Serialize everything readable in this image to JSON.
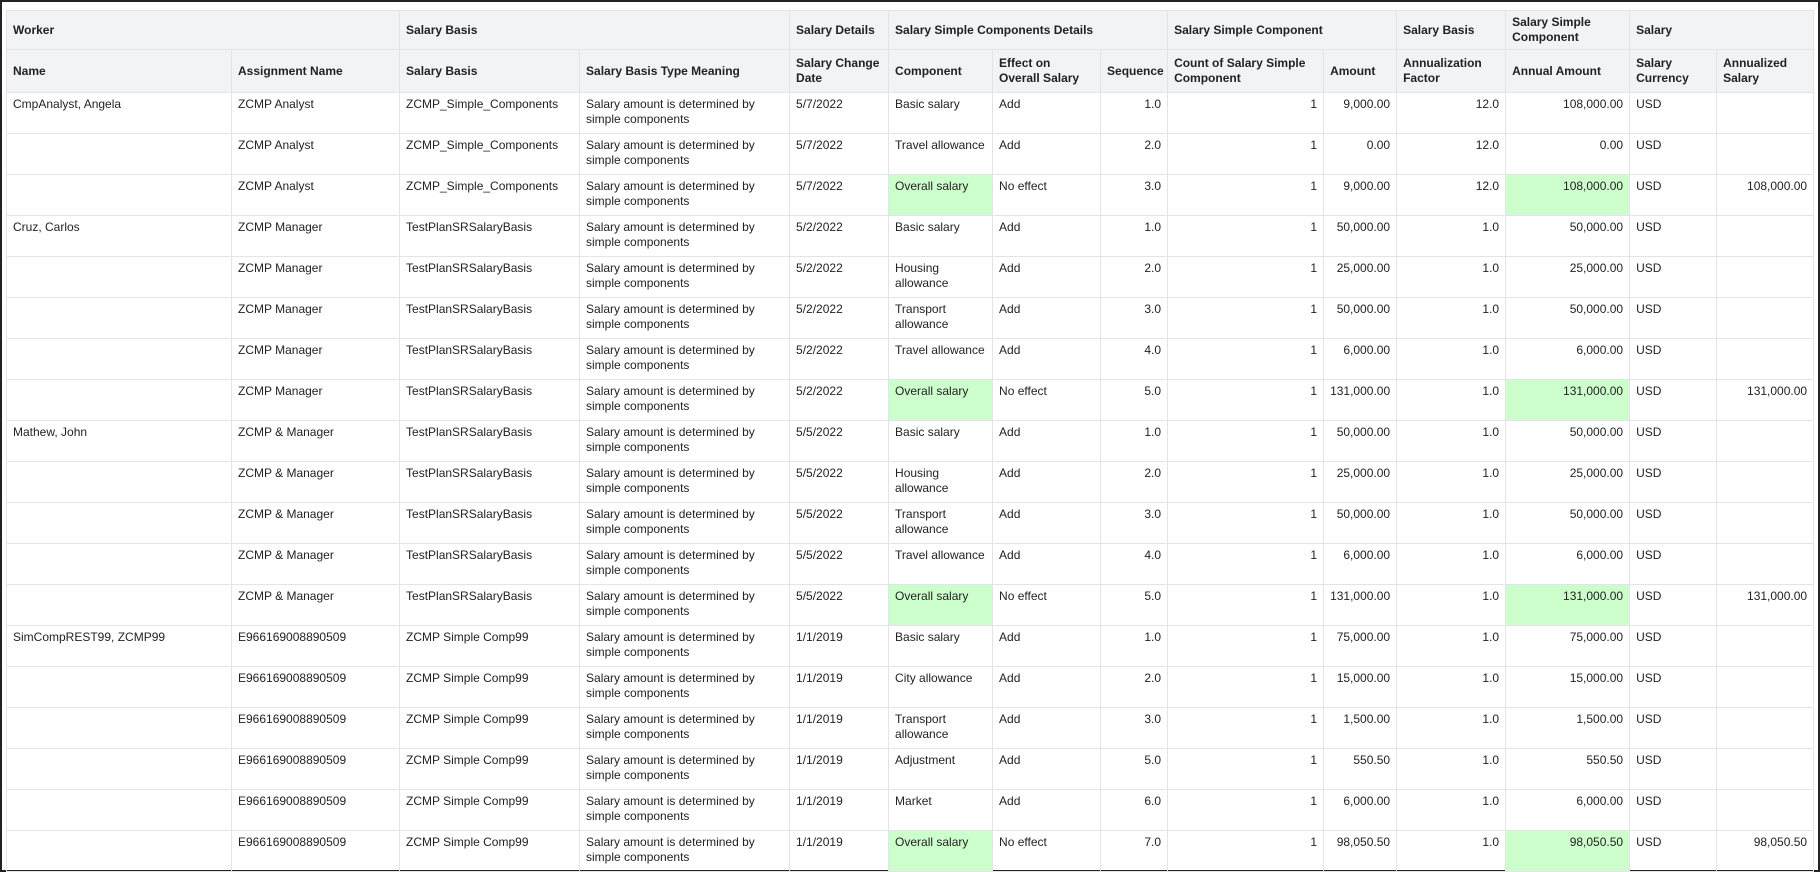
{
  "table": {
    "groups": [
      {
        "label": "Worker",
        "span": 2
      },
      {
        "label": "Salary Basis",
        "span": 2
      },
      {
        "label": "Salary Details",
        "span": 1
      },
      {
        "label": "Salary Simple Components Details",
        "span": 3
      },
      {
        "label": "Salary Simple Component",
        "span": 2
      },
      {
        "label": "Salary Basis",
        "span": 1
      },
      {
        "label": "Salary Simple Component",
        "span": 1
      },
      {
        "label": "Salary",
        "span": 2
      }
    ],
    "columns": [
      "Name",
      "Assignment Name",
      "Salary Basis",
      "Salary Basis Type Meaning",
      "Salary Change Date",
      "Component",
      "Effect on Overall Salary",
      "Sequence",
      "Count of Salary Simple Component",
      "Amount",
      "Annualization Factor",
      "Annual Amount",
      "Salary Currency",
      "Annualized Salary"
    ],
    "highlight_color": "#ccffcc",
    "highlighted_columns": [
      5,
      11
    ],
    "rows": [
      {
        "cells": [
          "CmpAnalyst, Angela",
          "ZCMP Analyst",
          "ZCMP_Simple_Components",
          "Salary amount is determined by simple components",
          "5/7/2022",
          "Basic salary",
          "Add",
          "1.0",
          "1",
          "9,000.00",
          "12.0",
          "108,000.00",
          "USD",
          null
        ]
      },
      {
        "cells": [
          null,
          "ZCMP Analyst",
          "ZCMP_Simple_Components",
          "Salary amount is determined by simple components",
          "5/7/2022",
          "Travel allowance",
          "Add",
          "2.0",
          "1",
          "0.00",
          "12.0",
          "0.00",
          "USD",
          null
        ]
      },
      {
        "cells": [
          null,
          "ZCMP Analyst",
          "ZCMP_Simple_Components",
          "Salary amount is determined by simple components",
          "5/7/2022",
          "Overall salary",
          "No effect",
          "3.0",
          "1",
          "9,000.00",
          "12.0",
          "108,000.00",
          "USD",
          "108,000.00"
        ],
        "highlight": true
      },
      {
        "cells": [
          "Cruz, Carlos",
          "ZCMP Manager",
          "TestPlanSRSalaryBasis",
          "Salary amount is determined by simple components",
          "5/2/2022",
          "Basic salary",
          "Add",
          "1.0",
          "1",
          "50,000.00",
          "1.0",
          "50,000.00",
          "USD",
          null
        ]
      },
      {
        "cells": [
          null,
          "ZCMP Manager",
          "TestPlanSRSalaryBasis",
          "Salary amount is determined by simple components",
          "5/2/2022",
          "Housing allowance",
          "Add",
          "2.0",
          "1",
          "25,000.00",
          "1.0",
          "25,000.00",
          "USD",
          null
        ]
      },
      {
        "cells": [
          null,
          "ZCMP Manager",
          "TestPlanSRSalaryBasis",
          "Salary amount is determined by simple components",
          "5/2/2022",
          "Transport allowance",
          "Add",
          "3.0",
          "1",
          "50,000.00",
          "1.0",
          "50,000.00",
          "USD",
          null
        ]
      },
      {
        "cells": [
          null,
          "ZCMP Manager",
          "TestPlanSRSalaryBasis",
          "Salary amount is determined by simple components",
          "5/2/2022",
          "Travel allowance",
          "Add",
          "4.0",
          "1",
          "6,000.00",
          "1.0",
          "6,000.00",
          "USD",
          null
        ]
      },
      {
        "cells": [
          null,
          "ZCMP Manager",
          "TestPlanSRSalaryBasis",
          "Salary amount is determined by simple components",
          "5/2/2022",
          "Overall salary",
          "No effect",
          "5.0",
          "1",
          "131,000.00",
          "1.0",
          "131,000.00",
          "USD",
          "131,000.00"
        ],
        "highlight": true
      },
      {
        "cells": [
          "Mathew, John",
          "ZCMP & Manager",
          "TestPlanSRSalaryBasis",
          "Salary amount is determined by simple components",
          "5/5/2022",
          "Basic salary",
          "Add",
          "1.0",
          "1",
          "50,000.00",
          "1.0",
          "50,000.00",
          "USD",
          null
        ]
      },
      {
        "cells": [
          null,
          "ZCMP & Manager",
          "TestPlanSRSalaryBasis",
          "Salary amount is determined by simple components",
          "5/5/2022",
          "Housing allowance",
          "Add",
          "2.0",
          "1",
          "25,000.00",
          "1.0",
          "25,000.00",
          "USD",
          null
        ]
      },
      {
        "cells": [
          null,
          "ZCMP & Manager",
          "TestPlanSRSalaryBasis",
          "Salary amount is determined by simple components",
          "5/5/2022",
          "Transport allowance",
          "Add",
          "3.0",
          "1",
          "50,000.00",
          "1.0",
          "50,000.00",
          "USD",
          null
        ]
      },
      {
        "cells": [
          null,
          "ZCMP & Manager",
          "TestPlanSRSalaryBasis",
          "Salary amount is determined by simple components",
          "5/5/2022",
          "Travel allowance",
          "Add",
          "4.0",
          "1",
          "6,000.00",
          "1.0",
          "6,000.00",
          "USD",
          null
        ]
      },
      {
        "cells": [
          null,
          "ZCMP & Manager",
          "TestPlanSRSalaryBasis",
          "Salary amount is determined by simple components",
          "5/5/2022",
          "Overall salary",
          "No effect",
          "5.0",
          "1",
          "131,000.00",
          "1.0",
          "131,000.00",
          "USD",
          "131,000.00"
        ],
        "highlight": true
      },
      {
        "cells": [
          "SimCompREST99, ZCMP99",
          "E966169008890509",
          "ZCMP Simple Comp99",
          "Salary amount is determined by simple components",
          "1/1/2019",
          "Basic salary",
          "Add",
          "1.0",
          "1",
          "75,000.00",
          "1.0",
          "75,000.00",
          "USD",
          null
        ]
      },
      {
        "cells": [
          null,
          "E966169008890509",
          "ZCMP Simple Comp99",
          "Salary amount is determined by simple components",
          "1/1/2019",
          "City allowance",
          "Add",
          "2.0",
          "1",
          "15,000.00",
          "1.0",
          "15,000.00",
          "USD",
          null
        ]
      },
      {
        "cells": [
          null,
          "E966169008890509",
          "ZCMP Simple Comp99",
          "Salary amount is determined by simple components",
          "1/1/2019",
          "Transport allowance",
          "Add",
          "3.0",
          "1",
          "1,500.00",
          "1.0",
          "1,500.00",
          "USD",
          null
        ]
      },
      {
        "cells": [
          null,
          "E966169008890509",
          "ZCMP Simple Comp99",
          "Salary amount is determined by simple components",
          "1/1/2019",
          "Adjustment",
          "Add",
          "5.0",
          "1",
          "550.50",
          "1.0",
          "550.50",
          "USD",
          null
        ]
      },
      {
        "cells": [
          null,
          "E966169008890509",
          "ZCMP Simple Comp99",
          "Salary amount is determined by simple components",
          "1/1/2019",
          "Market",
          "Add",
          "6.0",
          "1",
          "6,000.00",
          "1.0",
          "6,000.00",
          "USD",
          null
        ]
      },
      {
        "cells": [
          null,
          "E966169008890509",
          "ZCMP Simple Comp99",
          "Salary amount is determined by simple components",
          "1/1/2019",
          "Overall salary",
          "No effect",
          "7.0",
          "1",
          "98,050.50",
          "1.0",
          "98,050.50",
          "USD",
          "98,050.50"
        ],
        "highlight": true
      }
    ]
  }
}
